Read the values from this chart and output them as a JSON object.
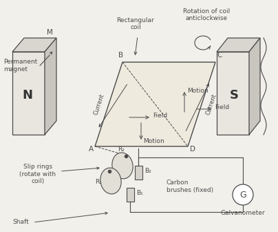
{
  "bg_color": "#f2f0eb",
  "line_color": "#4a4a4a",
  "face_color_light": "#e8e6de",
  "face_color_mid": "#d8d6ce",
  "face_color_dark": "#c8c6be",
  "labels": {
    "permanent_magnet": "Permanent\nmagnet",
    "rectangular_coil": "Rectangular\ncoil",
    "rotation": "Rotation of coil\nanticlockwise",
    "N": "N",
    "S": "S",
    "M": "M",
    "A": "A",
    "B": "B",
    "C": "C",
    "D": "D",
    "R1": "R₁",
    "R2": "R₂",
    "B1": "B₁",
    "B2": "B₂",
    "current_left": "Current",
    "current_right": "Current",
    "field_left": "Field",
    "field_right": "Field",
    "motion_left": "Motion",
    "motion_right": "Motion",
    "slip_rings": "Slip rings\n(rotate with\ncoil)",
    "carbon_brushes": "Carbon\nbrushes (fixed)",
    "shaft": "Shaft",
    "G": "G",
    "galvanometer": "Galvanometer"
  }
}
